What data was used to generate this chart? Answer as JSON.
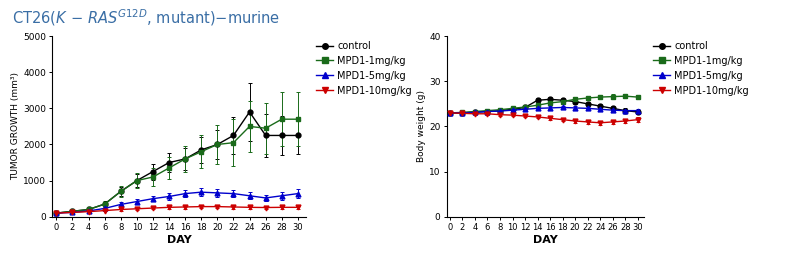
{
  "title_color": "#3a6ea5",
  "days": [
    0,
    2,
    4,
    6,
    8,
    10,
    12,
    14,
    16,
    18,
    20,
    22,
    24,
    26,
    28,
    30
  ],
  "tumor_control": [
    100,
    150,
    200,
    350,
    700,
    1000,
    1250,
    1500,
    1600,
    1850,
    2000,
    2250,
    2900,
    2250,
    2250,
    2250
  ],
  "tumor_control_err": [
    20,
    30,
    40,
    60,
    120,
    180,
    220,
    270,
    300,
    350,
    400,
    500,
    800,
    600,
    550,
    500
  ],
  "tumor_1mg": [
    100,
    150,
    200,
    350,
    700,
    1000,
    1100,
    1350,
    1600,
    1800,
    2000,
    2050,
    2500,
    2450,
    2700,
    2700
  ],
  "tumor_1mg_err": [
    20,
    40,
    55,
    80,
    160,
    200,
    250,
    300,
    350,
    450,
    550,
    650,
    700,
    700,
    750,
    750
  ],
  "tumor_5mg": [
    100,
    120,
    160,
    230,
    340,
    420,
    500,
    560,
    640,
    680,
    660,
    640,
    580,
    520,
    580,
    640
  ],
  "tumor_5mg_err": [
    20,
    25,
    30,
    40,
    55,
    65,
    75,
    85,
    95,
    105,
    105,
    105,
    95,
    95,
    105,
    115
  ],
  "tumor_10mg": [
    100,
    120,
    140,
    170,
    200,
    220,
    240,
    260,
    270,
    280,
    280,
    270,
    260,
    255,
    260,
    260
  ],
  "tumor_10mg_err": [
    15,
    20,
    25,
    25,
    30,
    35,
    35,
    40,
    45,
    45,
    45,
    45,
    40,
    40,
    45,
    45
  ],
  "bw_days": [
    0,
    2,
    4,
    6,
    8,
    10,
    12,
    14,
    16,
    18,
    20,
    22,
    24,
    26,
    28,
    30
  ],
  "bw_control": [
    23.0,
    23.0,
    23.2,
    23.3,
    23.5,
    23.8,
    24.2,
    25.8,
    26.0,
    25.8,
    25.5,
    25.0,
    24.5,
    24.0,
    23.5,
    23.2
  ],
  "bw_control_err": [
    0.3,
    0.3,
    0.3,
    0.3,
    0.3,
    0.4,
    0.4,
    0.5,
    0.5,
    0.5,
    0.5,
    0.5,
    0.5,
    0.5,
    0.5,
    0.5
  ],
  "bw_1mg": [
    23.0,
    23.1,
    23.3,
    23.5,
    23.7,
    24.0,
    24.3,
    24.7,
    25.2,
    25.5,
    26.0,
    26.3,
    26.5,
    26.6,
    26.7,
    26.5
  ],
  "bw_1mg_err": [
    0.3,
    0.3,
    0.3,
    0.3,
    0.4,
    0.4,
    0.4,
    0.5,
    0.5,
    0.5,
    0.5,
    0.5,
    0.5,
    0.5,
    0.5,
    0.5
  ],
  "bw_5mg": [
    23.0,
    23.0,
    23.1,
    23.3,
    23.4,
    23.6,
    23.8,
    24.0,
    24.1,
    24.2,
    24.1,
    24.0,
    23.8,
    23.6,
    23.5,
    23.5
  ],
  "bw_5mg_err": [
    0.3,
    0.3,
    0.3,
    0.3,
    0.3,
    0.3,
    0.4,
    0.4,
    0.4,
    0.4,
    0.4,
    0.4,
    0.4,
    0.4,
    0.4,
    0.4
  ],
  "bw_10mg": [
    23.0,
    22.9,
    22.8,
    22.8,
    22.6,
    22.5,
    22.3,
    22.1,
    21.8,
    21.5,
    21.2,
    21.0,
    20.8,
    21.0,
    21.2,
    21.5
  ],
  "bw_10mg_err": [
    0.3,
    0.3,
    0.3,
    0.3,
    0.3,
    0.3,
    0.3,
    0.3,
    0.3,
    0.4,
    0.4,
    0.4,
    0.4,
    0.4,
    0.4,
    0.5
  ],
  "color_control": "#000000",
  "color_1mg": "#1a6b1a",
  "color_5mg": "#0000cc",
  "color_10mg": "#cc0000",
  "tumor_ylabel": "TUMOR GROWTH (mm³)",
  "tumor_xlabel": "DAY",
  "tumor_ylim": [
    0,
    5000
  ],
  "tumor_yticks": [
    0,
    1000,
    2000,
    3000,
    4000,
    5000
  ],
  "bw_ylabel": "Body weight (g)",
  "bw_xlabel": "DAY",
  "bw_ylim": [
    0,
    40
  ],
  "bw_yticks": [
    0,
    10,
    20,
    30,
    40
  ],
  "legend_labels": [
    "control",
    "MPD1-1mg/kg",
    "MPD1-5mg/kg",
    "MPD1-10mg/kg"
  ],
  "xtick_labels": [
    "0",
    "2",
    "4",
    "6",
    "8",
    "10",
    "12",
    "14",
    "16",
    "18",
    "20",
    "22",
    "24",
    "26",
    "28",
    "30"
  ]
}
